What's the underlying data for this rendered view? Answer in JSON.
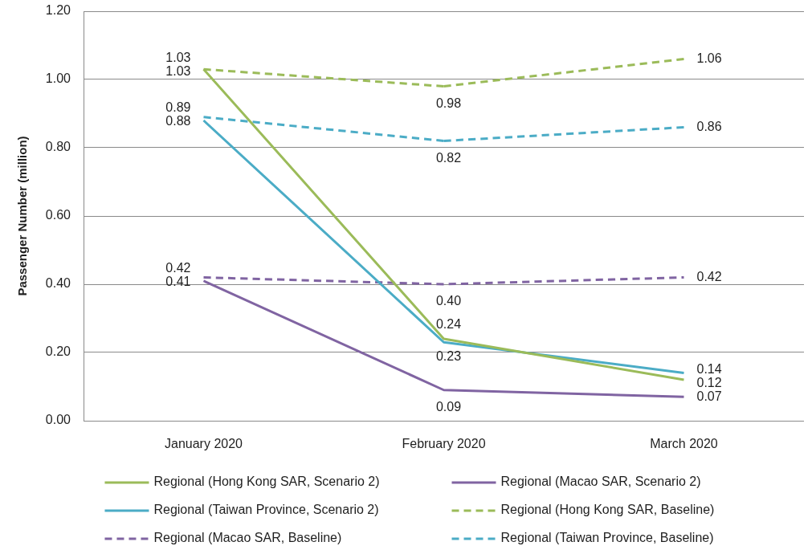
{
  "chart_data": {
    "type": "line",
    "ylabel": "Passenger Number (million)",
    "categories": [
      "January 2020",
      "February 2020",
      "March 2020"
    ],
    "ylim": [
      0,
      1.2
    ],
    "yticks": [
      {
        "value": 0,
        "label": "0.00"
      },
      {
        "value": 0.2,
        "label": "0.20"
      },
      {
        "value": 0.4,
        "label": "0.40"
      },
      {
        "value": 0.6,
        "label": "0.60"
      },
      {
        "value": 0.8,
        "label": "0.80"
      },
      {
        "value": 1.0,
        "label": "1.00"
      },
      {
        "value": 1.2,
        "label": "1.20"
      }
    ],
    "grid": "y",
    "legend": "bottom",
    "series": [
      {
        "name": "Regional (Hong Kong SAR, Scenario 2)",
        "color": "#9bbb59",
        "line_style": "solid",
        "values": [
          1.03,
          0.24,
          0.12
        ],
        "value_labels": [
          "1.03",
          "0.24",
          "0.12"
        ]
      },
      {
        "name": "Regional (Macao SAR, Scenario 2)",
        "color": "#8064a2",
        "line_style": "solid",
        "values": [
          0.41,
          0.09,
          0.07
        ],
        "value_labels": [
          "0.41",
          "0.09",
          "0.07"
        ]
      },
      {
        "name": "Regional (Taiwan Province, Scenario 2)",
        "color": "#4bacc6",
        "line_style": "solid",
        "values": [
          0.88,
          0.23,
          0.14
        ],
        "value_labels": [
          "0.88",
          "0.23",
          "0.14"
        ]
      },
      {
        "name": "Regional (Hong Kong SAR, Baseline)",
        "color": "#9bbb59",
        "line_style": "dashed",
        "values": [
          1.03,
          0.98,
          1.06
        ],
        "value_labels": [
          "1.03",
          "0.98",
          "1.06"
        ]
      },
      {
        "name": "Regional (Macao SAR, Baseline)",
        "color": "#8064a2",
        "line_style": "dashed",
        "values": [
          0.42,
          0.4,
          0.42
        ],
        "value_labels": [
          "0.42",
          "0.40",
          "0.42"
        ]
      },
      {
        "name": "Regional (Taiwan Province, Baseline)",
        "color": "#4bacc6",
        "line_style": "dashed",
        "values": [
          0.89,
          0.82,
          0.86
        ],
        "value_labels": [
          "0.89",
          "0.82",
          "0.86"
        ]
      }
    ]
  }
}
